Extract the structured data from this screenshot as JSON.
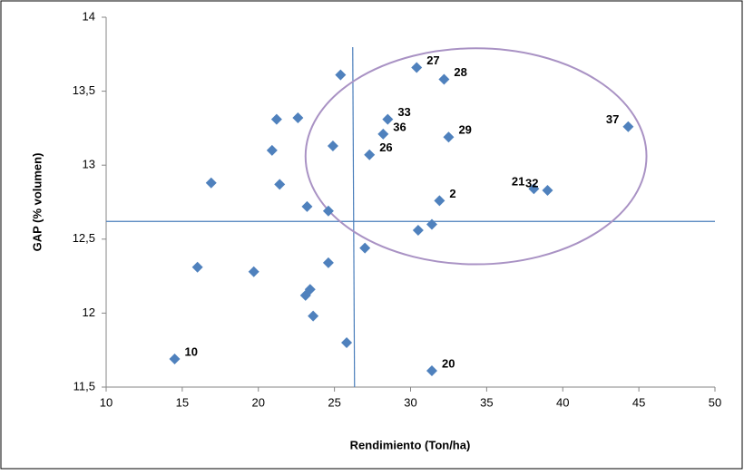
{
  "chart_data": {
    "type": "scatter",
    "xlabel": "Rendimiento (Ton/ha)",
    "ylabel": "GAP (% volumen)",
    "xlim": [
      10,
      50
    ],
    "xticks": [
      10,
      15,
      20,
      25,
      30,
      35,
      40,
      45,
      50
    ],
    "ylim": [
      11.5,
      14
    ],
    "yticks": [
      {
        "value": 11.5,
        "label": "11,5"
      },
      12,
      {
        "value": 12.5,
        "label": "12,5"
      },
      13,
      {
        "value": 13.5,
        "label": "13,5"
      },
      14
    ],
    "grid": false,
    "series": [
      {
        "color": "#4f81bd",
        "x": [
          14.5,
          16.0,
          16.9,
          19.7,
          20.9,
          21.2,
          21.4,
          22.6,
          23.2,
          23.1,
          23.4,
          23.6,
          24.6,
          24.6,
          24.9,
          25.4,
          25.8,
          27.0,
          27.3,
          28.2,
          28.5,
          30.4,
          30.5,
          31.4,
          31.4,
          31.9,
          32.2,
          32.5,
          38.1,
          39.0,
          44.3
        ],
        "values": [
          11.69,
          12.31,
          12.88,
          12.28,
          13.1,
          13.31,
          12.87,
          13.32,
          12.72,
          12.12,
          12.16,
          11.98,
          12.69,
          12.34,
          13.13,
          13.61,
          11.8,
          12.44,
          13.07,
          13.21,
          13.31,
          13.66,
          12.56,
          12.6,
          11.61,
          12.76,
          13.58,
          13.19,
          12.84,
          12.83,
          13.26
        ],
        "point_labels": [
          "10",
          null,
          null,
          null,
          null,
          null,
          null,
          null,
          null,
          null,
          null,
          null,
          null,
          null,
          null,
          null,
          null,
          null,
          "26",
          "36",
          "33",
          "27",
          null,
          null,
          "20",
          "2",
          "28",
          "29",
          "21",
          "32",
          "37"
        ]
      }
    ],
    "reference_lines": {
      "color": "#4a7ebb",
      "x": 26.2,
      "y": 12.62
    },
    "ellipse": {
      "color": "#a992c4",
      "cx": 34.3,
      "cy": 13.06,
      "rx": 11.2,
      "ry": 0.73
    }
  }
}
